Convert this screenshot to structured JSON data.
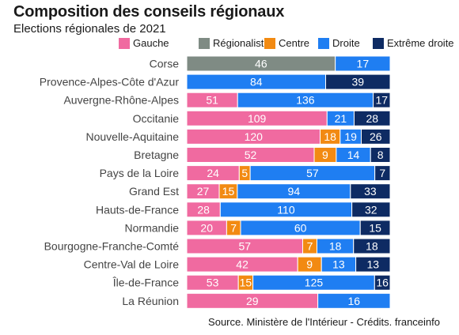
{
  "title": "Composition des conseils régionaux",
  "subtitle": "Elections régionales de 2021",
  "source": "Source. Ministère de l'Intérieur - Crédits. franceinfo",
  "colors": {
    "Gauche": "#f06aa0",
    "Régionalistes": "#7f8b84",
    "Centre": "#f28a12",
    "Droite": "#1f7ef2",
    "Extrême droite": "#0e2b63"
  },
  "chart_data": {
    "type": "bar",
    "orientation": "horizontal",
    "stacked": true,
    "title": "Composition des conseils régionaux",
    "subtitle": "Elections régionales de 2021",
    "legend_position": "top-right",
    "categories": [
      "Corse",
      "Provence-Alpes-Côte d'Azur",
      "Auvergne-Rhône-Alpes",
      "Occitanie",
      "Nouvelle-Aquitaine",
      "Bretagne",
      "Pays de la Loire",
      "Grand Est",
      "Hauts-de-France",
      "Normandie",
      "Bourgogne-Franche-Comté",
      "Centre-Val de Loire",
      "Île-de-France",
      "La Réunion"
    ],
    "series": [
      {
        "name": "Gauche",
        "values": [
          0,
          0,
          51,
          109,
          120,
          52,
          24,
          27,
          28,
          20,
          57,
          42,
          53,
          29
        ]
      },
      {
        "name": "Régionalistes",
        "values": [
          46,
          0,
          0,
          0,
          0,
          0,
          0,
          0,
          0,
          0,
          0,
          0,
          0,
          0
        ]
      },
      {
        "name": "Centre",
        "values": [
          0,
          0,
          0,
          0,
          18,
          9,
          5,
          15,
          0,
          7,
          7,
          9,
          15,
          0
        ]
      },
      {
        "name": "Droite",
        "values": [
          17,
          84,
          136,
          21,
          19,
          14,
          57,
          94,
          110,
          60,
          18,
          13,
          125,
          16
        ]
      },
      {
        "name": "Extrême droite",
        "values": [
          0,
          39,
          17,
          28,
          26,
          8,
          7,
          33,
          32,
          15,
          18,
          13,
          16,
          0
        ]
      }
    ]
  }
}
